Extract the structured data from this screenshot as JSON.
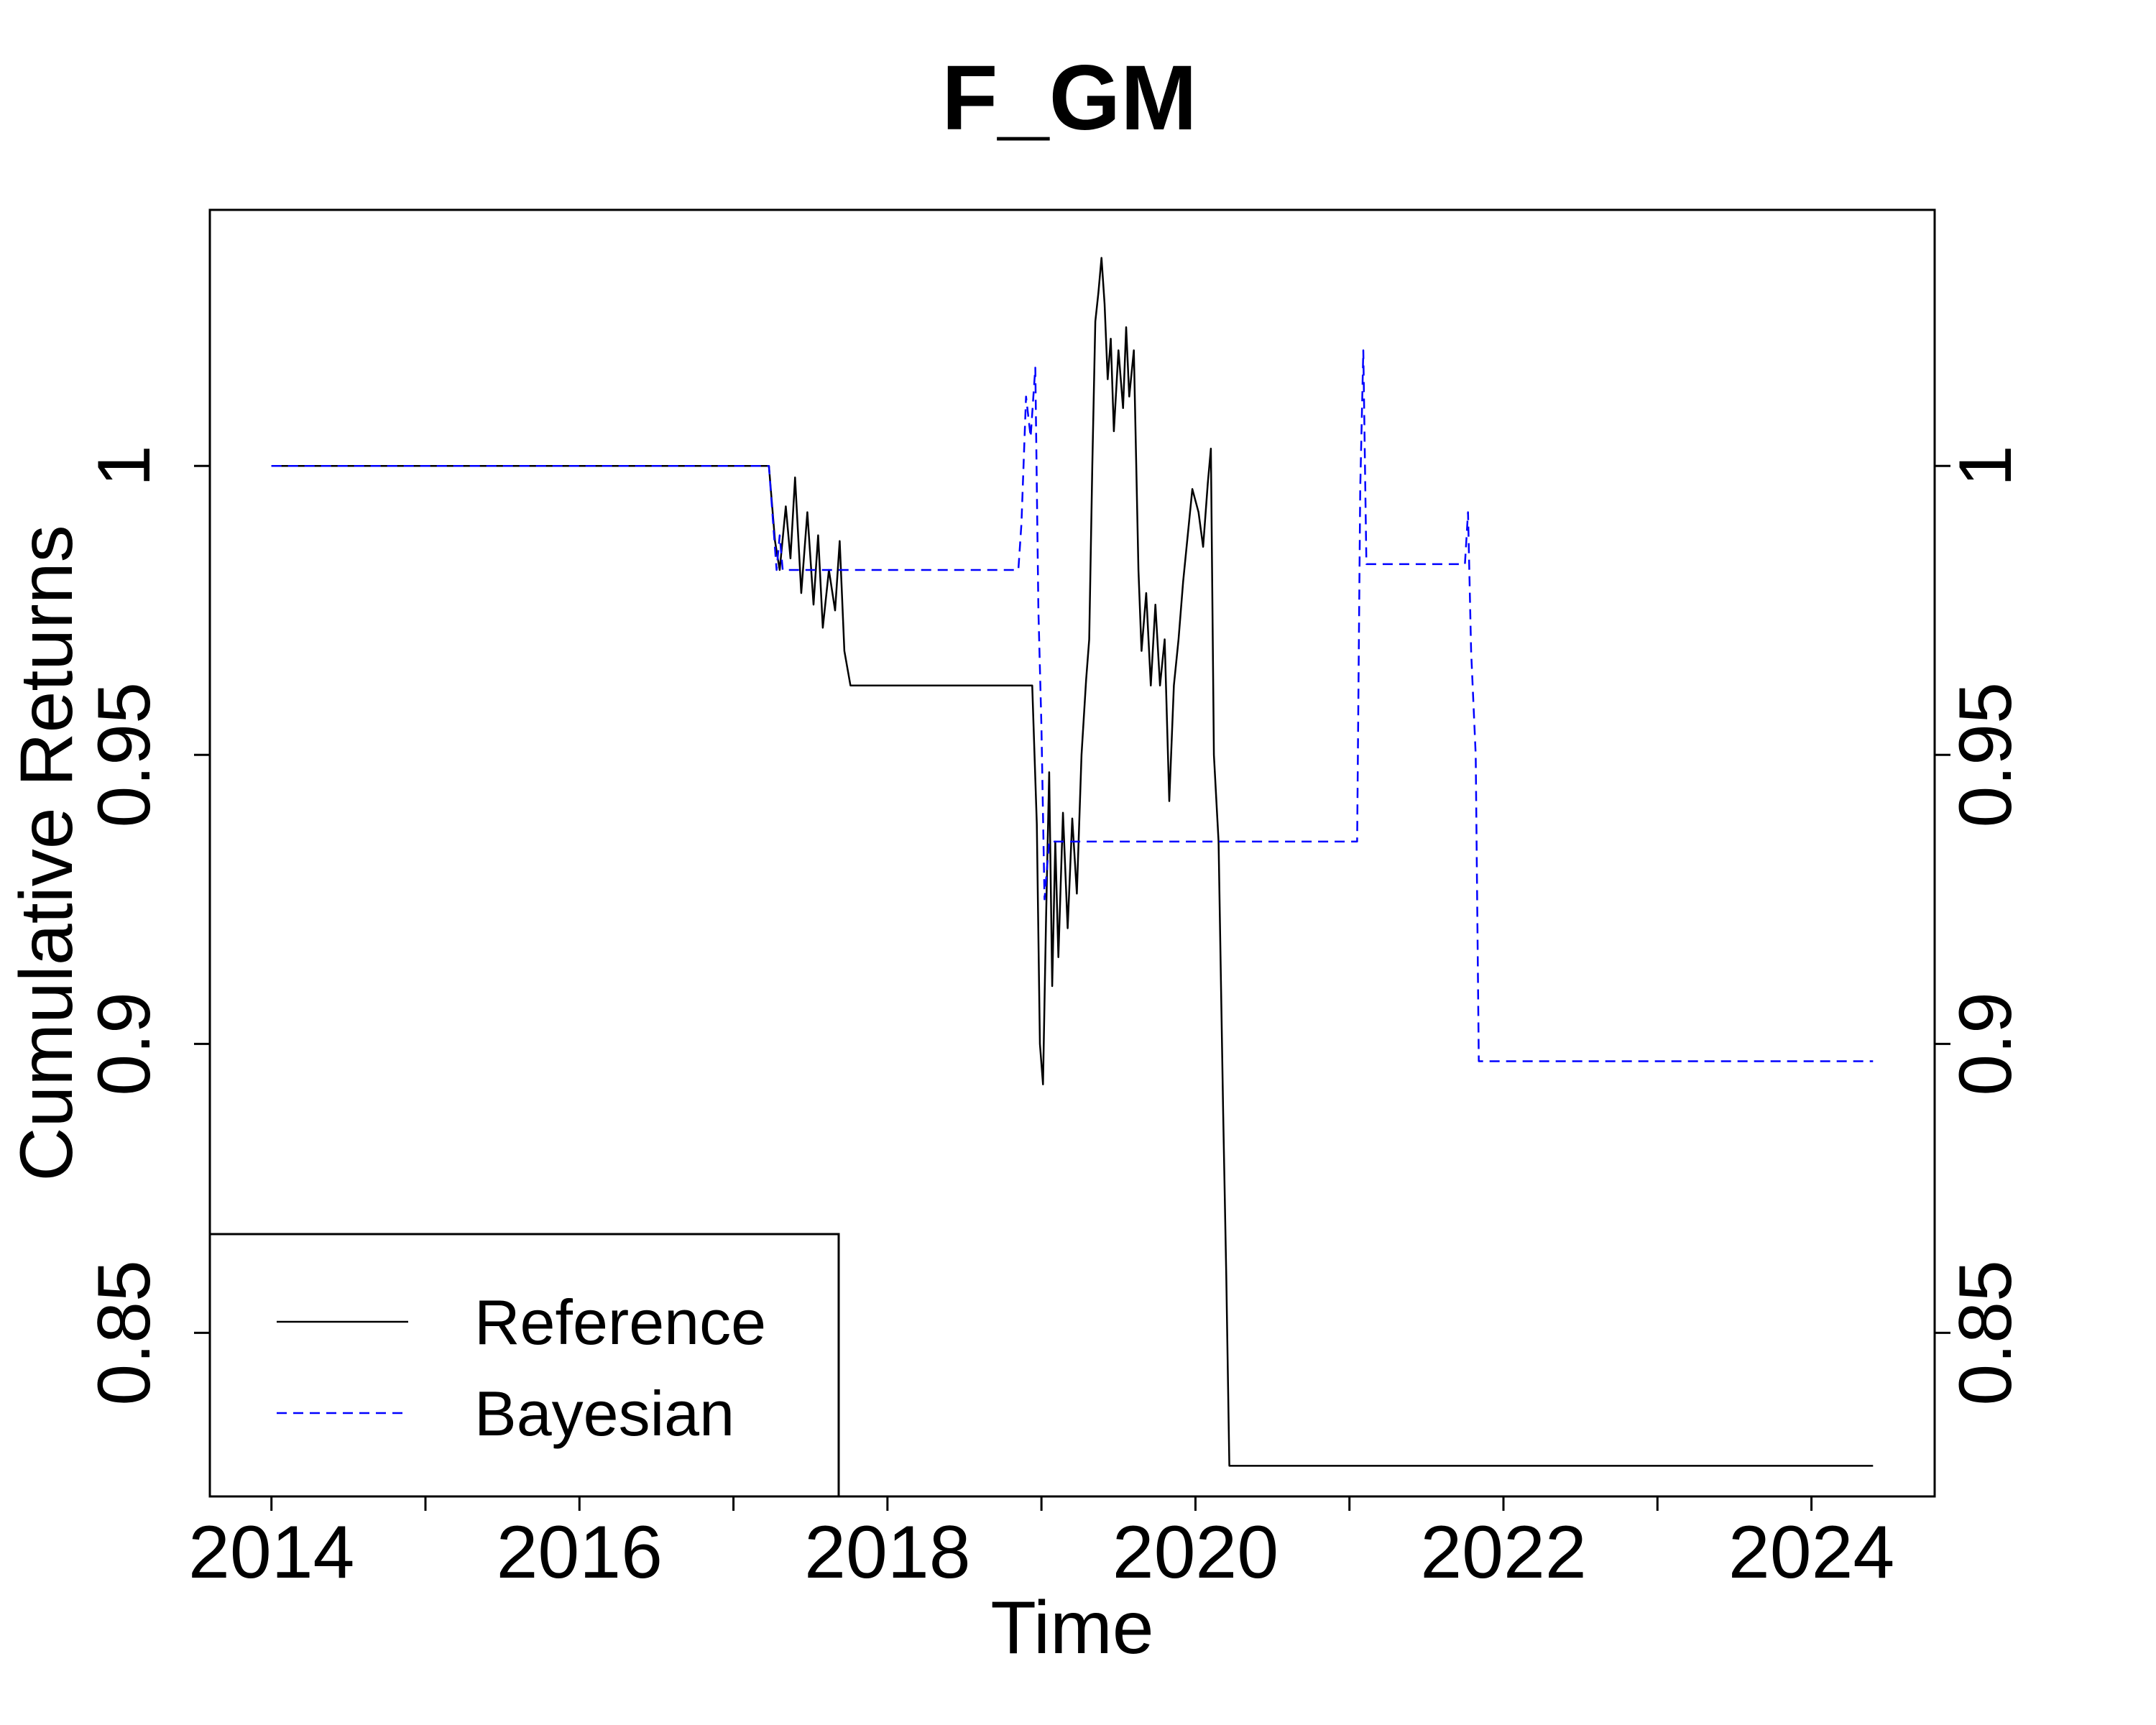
{
  "chart_data": {
    "type": "line",
    "title": "F_GM",
    "xlabel": "Time",
    "ylabel": "Cumulative Returns",
    "xlim": [
      2013.6,
      2024.8
    ],
    "ylim": [
      0.8217,
      1.0443
    ],
    "x_ticks": [
      2014,
      2015,
      2016,
      2017,
      2018,
      2019,
      2020,
      2021,
      2022,
      2023,
      2024
    ],
    "x_tick_labels": [
      "2014",
      "2016",
      "2018",
      "2020",
      "2022",
      "2024"
    ],
    "x_tick_label_values": [
      2014,
      2016,
      2018,
      2020,
      2022,
      2024
    ],
    "y_ticks": [
      0.85,
      0.9,
      0.95,
      1.0
    ],
    "y_tick_labels": [
      "0.85",
      "0.9",
      "0.95",
      "1"
    ],
    "legend": {
      "position": "bottom-left"
    },
    "grid": false,
    "series": [
      {
        "name": "Reference",
        "color": "#000000",
        "dash": "solid",
        "points": [
          [
            2014.0,
            1.0
          ],
          [
            2017.23,
            1.0
          ],
          [
            2017.27,
            0.987
          ],
          [
            2017.3,
            0.982
          ],
          [
            2017.34,
            0.993
          ],
          [
            2017.37,
            0.984
          ],
          [
            2017.4,
            0.998
          ],
          [
            2017.44,
            0.978
          ],
          [
            2017.48,
            0.992
          ],
          [
            2017.52,
            0.976
          ],
          [
            2017.55,
            0.988
          ],
          [
            2017.58,
            0.972
          ],
          [
            2017.62,
            0.982
          ],
          [
            2017.66,
            0.975
          ],
          [
            2017.69,
            0.987
          ],
          [
            2017.72,
            0.968
          ],
          [
            2017.76,
            0.962
          ],
          [
            2018.1,
            0.962
          ],
          [
            2018.94,
            0.962
          ],
          [
            2018.97,
            0.938
          ],
          [
            2018.99,
            0.9
          ],
          [
            2019.01,
            0.893
          ],
          [
            2019.03,
            0.922
          ],
          [
            2019.05,
            0.947
          ],
          [
            2019.07,
            0.91
          ],
          [
            2019.09,
            0.935
          ],
          [
            2019.11,
            0.915
          ],
          [
            2019.14,
            0.94
          ],
          [
            2019.17,
            0.92
          ],
          [
            2019.2,
            0.939
          ],
          [
            2019.23,
            0.926
          ],
          [
            2019.26,
            0.95
          ],
          [
            2019.29,
            0.963
          ],
          [
            2019.31,
            0.97
          ],
          [
            2019.33,
            1.0
          ],
          [
            2019.35,
            1.025
          ],
          [
            2019.37,
            1.03
          ],
          [
            2019.39,
            1.036
          ],
          [
            2019.41,
            1.028
          ],
          [
            2019.43,
            1.015
          ],
          [
            2019.45,
            1.022
          ],
          [
            2019.47,
            1.006
          ],
          [
            2019.5,
            1.02
          ],
          [
            2019.53,
            1.01
          ],
          [
            2019.55,
            1.024
          ],
          [
            2019.57,
            1.012
          ],
          [
            2019.6,
            1.02
          ],
          [
            2019.63,
            0.982
          ],
          [
            2019.65,
            0.968
          ],
          [
            2019.68,
            0.978
          ],
          [
            2019.71,
            0.962
          ],
          [
            2019.74,
            0.976
          ],
          [
            2019.77,
            0.962
          ],
          [
            2019.8,
            0.97
          ],
          [
            2019.83,
            0.942
          ],
          [
            2019.86,
            0.962
          ],
          [
            2019.89,
            0.97
          ],
          [
            2019.92,
            0.98
          ],
          [
            2019.95,
            0.988
          ],
          [
            2019.98,
            0.996
          ],
          [
            2020.02,
            0.992
          ],
          [
            2020.05,
            0.986
          ],
          [
            2020.08,
            0.997
          ],
          [
            2020.1,
            1.003
          ],
          [
            2020.12,
            0.95
          ],
          [
            2020.15,
            0.935
          ],
          [
            2020.18,
            0.888
          ],
          [
            2020.2,
            0.86
          ],
          [
            2020.22,
            0.827
          ],
          [
            2024.4,
            0.827
          ]
        ]
      },
      {
        "name": "Bayesian",
        "color": "#0000ff",
        "dash": "dashed",
        "points": [
          [
            2014.0,
            1.0
          ],
          [
            2017.23,
            1.0
          ],
          [
            2017.28,
            0.982
          ],
          [
            2017.3,
            0.988
          ],
          [
            2017.32,
            0.982
          ],
          [
            2018.85,
            0.982
          ],
          [
            2018.87,
            0.99
          ],
          [
            2018.9,
            1.012
          ],
          [
            2018.93,
            1.005
          ],
          [
            2018.96,
            1.017
          ],
          [
            2018.98,
            0.975
          ],
          [
            2019.0,
            0.955
          ],
          [
            2019.02,
            0.925
          ],
          [
            2019.05,
            0.935
          ],
          [
            2019.06,
            0.935
          ],
          [
            2021.05,
            0.935
          ],
          [
            2021.07,
            0.996
          ],
          [
            2021.09,
            1.02
          ],
          [
            2021.11,
            0.983
          ],
          [
            2021.75,
            0.983
          ],
          [
            2021.77,
            0.992
          ],
          [
            2021.79,
            0.968
          ],
          [
            2021.82,
            0.95
          ],
          [
            2021.84,
            0.897
          ],
          [
            2024.4,
            0.897
          ]
        ]
      }
    ]
  }
}
